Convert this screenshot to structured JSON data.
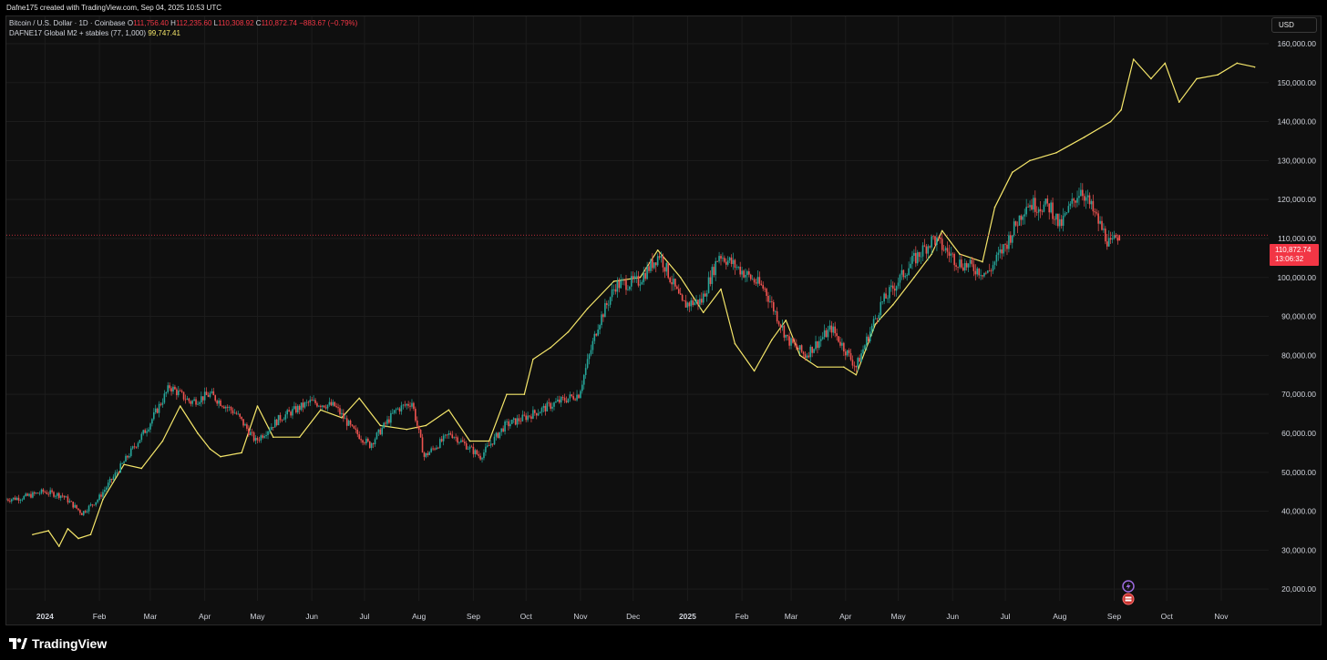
{
  "header": {
    "credit": "Dafne175 created with TradingView.com, Sep 04, 2025 10:53 UTC"
  },
  "legend": {
    "symbol_text": "Bitcoin / U.S. Dollar · 1D · Coinbase",
    "o_label": "O",
    "o_value": "111,756.40",
    "h_label": "H",
    "h_value": "112,235.60",
    "l_label": "L",
    "l_value": "110,308.92",
    "c_label": "C",
    "c_value": "110,872.74",
    "change": "−883.67 (−0.79%)",
    "indicator_text": "DAFNE17 Global M2 + stables (77, 1,000)",
    "indicator_value": "99,747.41"
  },
  "currency": "USD",
  "price_tag": {
    "price": "110,872.74",
    "countdown": "13:06:32"
  },
  "footer": {
    "brand": "TradingView"
  },
  "icons": [
    "tradingview-logo-icon",
    "event-flash-icon",
    "event-flag-icon"
  ],
  "colors": {
    "up": "#26a69a",
    "down": "#ef5350",
    "indicator": "#f5e66a",
    "background": "#0f0f0f",
    "price_line": "#f23645"
  },
  "chart_data": {
    "type": "line",
    "title": "Bitcoin / U.S. Dollar · 1D · Coinbase",
    "y_scale": "linear",
    "ylim": [
      17000,
      167000
    ],
    "y_ticks": [
      20000,
      30000,
      40000,
      50000,
      60000,
      70000,
      80000,
      90000,
      100000,
      110000,
      120000,
      130000,
      140000,
      150000,
      160000
    ],
    "y_tick_labels": [
      "20,000.00",
      "30,000.00",
      "40,000.00",
      "50,000.00",
      "60,000.00",
      "70,000.00",
      "80,000.00",
      "90,000.00",
      "100,000.00",
      "110,000.00",
      "120,000.00",
      "130,000.00",
      "140,000.00",
      "150,000.00",
      "160,000.00"
    ],
    "x_ticks": [
      {
        "label": "2024",
        "date": "2024-01-01",
        "bold": true
      },
      {
        "label": "Feb",
        "date": "2024-02-01"
      },
      {
        "label": "Mar",
        "date": "2024-03-01"
      },
      {
        "label": "Apr",
        "date": "2024-04-01"
      },
      {
        "label": "May",
        "date": "2024-05-01"
      },
      {
        "label": "Jun",
        "date": "2024-06-01"
      },
      {
        "label": "Jul",
        "date": "2024-07-01"
      },
      {
        "label": "Aug",
        "date": "2024-08-01"
      },
      {
        "label": "Sep",
        "date": "2024-09-01"
      },
      {
        "label": "Oct",
        "date": "2024-10-01"
      },
      {
        "label": "Nov",
        "date": "2024-11-01"
      },
      {
        "label": "Dec",
        "date": "2024-12-01"
      },
      {
        "label": "2025",
        "date": "2025-01-01",
        "bold": true
      },
      {
        "label": "Feb",
        "date": "2025-02-01"
      },
      {
        "label": "Mar",
        "date": "2025-03-01"
      },
      {
        "label": "Apr",
        "date": "2025-04-01"
      },
      {
        "label": "May",
        "date": "2025-05-01"
      },
      {
        "label": "Jun",
        "date": "2025-06-01"
      },
      {
        "label": "Jul",
        "date": "2025-07-01"
      },
      {
        "label": "Aug",
        "date": "2025-08-01"
      },
      {
        "label": "Sep",
        "date": "2025-09-01"
      },
      {
        "label": "Oct",
        "date": "2025-10-01"
      },
      {
        "label": "Nov",
        "date": "2025-11-01"
      }
    ],
    "x_range": [
      "2023-12-10",
      "2025-11-28"
    ],
    "last_price": 110872.74,
    "series": [
      {
        "name": "Bitcoin / U.S. Dollar · 1D · Coinbase",
        "kind": "candlestick",
        "color_up": "#26a69a",
        "color_down": "#ef5350",
        "points": [
          {
            "date": "2023-12-10",
            "value": 43000
          },
          {
            "date": "2023-12-20",
            "value": 43500
          },
          {
            "date": "2024-01-01",
            "value": 45000
          },
          {
            "date": "2024-01-12",
            "value": 44000
          },
          {
            "date": "2024-01-23",
            "value": 39500
          },
          {
            "date": "2024-02-01",
            "value": 43000
          },
          {
            "date": "2024-02-15",
            "value": 52000
          },
          {
            "date": "2024-03-01",
            "value": 62000
          },
          {
            "date": "2024-03-13",
            "value": 72000
          },
          {
            "date": "2024-03-25",
            "value": 68000
          },
          {
            "date": "2024-04-05",
            "value": 70000
          },
          {
            "date": "2024-04-20",
            "value": 65000
          },
          {
            "date": "2024-05-01",
            "value": 58000
          },
          {
            "date": "2024-05-15",
            "value": 64000
          },
          {
            "date": "2024-06-01",
            "value": 68000
          },
          {
            "date": "2024-06-15",
            "value": 67000
          },
          {
            "date": "2024-06-25",
            "value": 61000
          },
          {
            "date": "2024-07-05",
            "value": 57000
          },
          {
            "date": "2024-07-20",
            "value": 66000
          },
          {
            "date": "2024-07-29",
            "value": 68000
          },
          {
            "date": "2024-08-05",
            "value": 54000
          },
          {
            "date": "2024-08-20",
            "value": 60000
          },
          {
            "date": "2024-09-06",
            "value": 54000
          },
          {
            "date": "2024-09-20",
            "value": 62000
          },
          {
            "date": "2024-10-01",
            "value": 64000
          },
          {
            "date": "2024-10-20",
            "value": 68000
          },
          {
            "date": "2024-11-01",
            "value": 70000
          },
          {
            "date": "2024-11-12",
            "value": 88000
          },
          {
            "date": "2024-11-22",
            "value": 98000
          },
          {
            "date": "2024-12-05",
            "value": 99000
          },
          {
            "date": "2024-12-17",
            "value": 106000
          },
          {
            "date": "2024-12-30",
            "value": 93000
          },
          {
            "date": "2025-01-10",
            "value": 94000
          },
          {
            "date": "2025-01-20",
            "value": 106000
          },
          {
            "date": "2025-02-01",
            "value": 102000
          },
          {
            "date": "2025-02-15",
            "value": 97000
          },
          {
            "date": "2025-02-28",
            "value": 84000
          },
          {
            "date": "2025-03-10",
            "value": 80000
          },
          {
            "date": "2025-03-25",
            "value": 87000
          },
          {
            "date": "2025-04-08",
            "value": 77000
          },
          {
            "date": "2025-04-22",
            "value": 93000
          },
          {
            "date": "2025-05-10",
            "value": 104000
          },
          {
            "date": "2025-05-22",
            "value": 110000
          },
          {
            "date": "2025-06-05",
            "value": 104000
          },
          {
            "date": "2025-06-22",
            "value": 101000
          },
          {
            "date": "2025-07-03",
            "value": 109000
          },
          {
            "date": "2025-07-14",
            "value": 119000
          },
          {
            "date": "2025-07-28",
            "value": 118000
          },
          {
            "date": "2025-08-02",
            "value": 113000
          },
          {
            "date": "2025-08-14",
            "value": 123000
          },
          {
            "date": "2025-08-22",
            "value": 116000
          },
          {
            "date": "2025-08-31",
            "value": 108000
          },
          {
            "date": "2025-09-04",
            "value": 110872.74
          }
        ]
      },
      {
        "name": "DAFNE17 Global M2 + stables (77, 1,000)",
        "kind": "line",
        "color": "#f5e66a",
        "points": [
          {
            "date": "2023-12-25",
            "value": 34000
          },
          {
            "date": "2024-01-03",
            "value": 35000
          },
          {
            "date": "2024-01-09",
            "value": 31000
          },
          {
            "date": "2024-01-14",
            "value": 35500
          },
          {
            "date": "2024-01-20",
            "value": 33000
          },
          {
            "date": "2024-01-27",
            "value": 34000
          },
          {
            "date": "2024-02-03",
            "value": 43000
          },
          {
            "date": "2024-02-15",
            "value": 52000
          },
          {
            "date": "2024-02-25",
            "value": 51000
          },
          {
            "date": "2024-03-08",
            "value": 58000
          },
          {
            "date": "2024-03-18",
            "value": 67000
          },
          {
            "date": "2024-03-28",
            "value": 60000
          },
          {
            "date": "2024-04-04",
            "value": 56000
          },
          {
            "date": "2024-04-10",
            "value": 54000
          },
          {
            "date": "2024-04-22",
            "value": 55000
          },
          {
            "date": "2024-05-01",
            "value": 67000
          },
          {
            "date": "2024-05-10",
            "value": 59000
          },
          {
            "date": "2024-05-25",
            "value": 59000
          },
          {
            "date": "2024-06-06",
            "value": 66000
          },
          {
            "date": "2024-06-18",
            "value": 64000
          },
          {
            "date": "2024-06-28",
            "value": 69000
          },
          {
            "date": "2024-07-10",
            "value": 62000
          },
          {
            "date": "2024-07-25",
            "value": 61000
          },
          {
            "date": "2024-08-05",
            "value": 62000
          },
          {
            "date": "2024-08-18",
            "value": 66000
          },
          {
            "date": "2024-08-30",
            "value": 58000
          },
          {
            "date": "2024-09-10",
            "value": 58000
          },
          {
            "date": "2024-09-20",
            "value": 70000
          },
          {
            "date": "2024-09-30",
            "value": 70000
          },
          {
            "date": "2024-10-05",
            "value": 79000
          },
          {
            "date": "2024-10-15",
            "value": 82000
          },
          {
            "date": "2024-10-25",
            "value": 86000
          },
          {
            "date": "2024-11-05",
            "value": 92000
          },
          {
            "date": "2024-11-20",
            "value": 99000
          },
          {
            "date": "2024-12-05",
            "value": 100000
          },
          {
            "date": "2024-12-15",
            "value": 107000
          },
          {
            "date": "2024-12-28",
            "value": 100000
          },
          {
            "date": "2025-01-10",
            "value": 91000
          },
          {
            "date": "2025-01-20",
            "value": 97000
          },
          {
            "date": "2025-01-28",
            "value": 83000
          },
          {
            "date": "2025-02-08",
            "value": 76000
          },
          {
            "date": "2025-02-18",
            "value": 84000
          },
          {
            "date": "2025-02-26",
            "value": 89000
          },
          {
            "date": "2025-03-06",
            "value": 80000
          },
          {
            "date": "2025-03-16",
            "value": 77000
          },
          {
            "date": "2025-03-31",
            "value": 77000
          },
          {
            "date": "2025-04-07",
            "value": 75000
          },
          {
            "date": "2025-04-18",
            "value": 88000
          },
          {
            "date": "2025-04-28",
            "value": 93000
          },
          {
            "date": "2025-05-10",
            "value": 100000
          },
          {
            "date": "2025-05-20",
            "value": 106000
          },
          {
            "date": "2025-05-26",
            "value": 112000
          },
          {
            "date": "2025-06-05",
            "value": 106000
          },
          {
            "date": "2025-06-18",
            "value": 104000
          },
          {
            "date": "2025-06-25",
            "value": 118000
          },
          {
            "date": "2025-07-05",
            "value": 127000
          },
          {
            "date": "2025-07-15",
            "value": 130000
          },
          {
            "date": "2025-07-30",
            "value": 132000
          },
          {
            "date": "2025-08-15",
            "value": 136000
          },
          {
            "date": "2025-08-30",
            "value": 140000
          },
          {
            "date": "2025-09-05",
            "value": 143000
          },
          {
            "date": "2025-09-12",
            "value": 156000
          },
          {
            "date": "2025-09-22",
            "value": 151000
          },
          {
            "date": "2025-09-30",
            "value": 155000
          },
          {
            "date": "2025-10-08",
            "value": 145000
          },
          {
            "date": "2025-10-18",
            "value": 151000
          },
          {
            "date": "2025-10-30",
            "value": 152000
          },
          {
            "date": "2025-11-10",
            "value": 155000
          },
          {
            "date": "2025-11-20",
            "value": 154000
          }
        ]
      }
    ]
  }
}
